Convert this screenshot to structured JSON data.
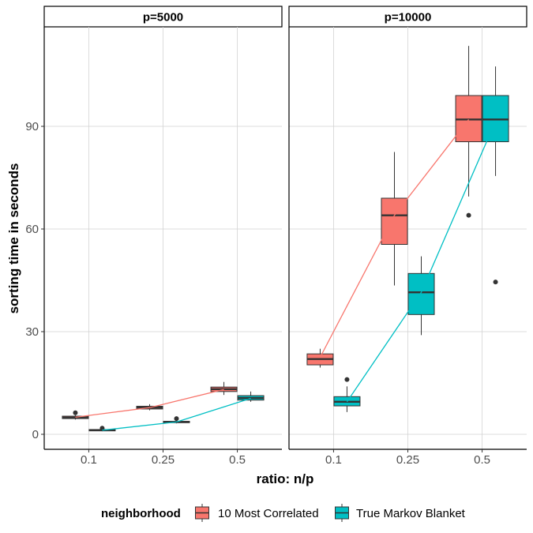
{
  "chart_data": {
    "type": "box",
    "xlabel": "ratio: n/p",
    "ylabel": "sorting time in seconds",
    "categories": [
      "0.1",
      "0.25",
      "0.5"
    ],
    "y_ticks": [
      0,
      30,
      60,
      90
    ],
    "ylim": [
      -4,
      118
    ],
    "grid": true,
    "legend": {
      "title": "neighborhood",
      "position": "bottom",
      "entries": [
        "10 Most Correlated",
        "True Markov Blanket"
      ]
    },
    "colors": {
      "10 Most Correlated": "#F8766D",
      "True Markov Blanket": "#00BFC4",
      "box_line": "#333333",
      "grid": "#d3d3d3"
    },
    "facets": [
      {
        "label": "p=5000",
        "series": [
          {
            "name": "10 Most Correlated",
            "boxes": [
              {
                "category": "0.1",
                "min": 4.3,
                "q1": 4.6,
                "median": 4.9,
                "q3": 5.3,
                "max": 5.6,
                "outliers": [
                  6.3
                ]
              },
              {
                "category": "0.25",
                "min": 7.0,
                "q1": 7.4,
                "median": 7.8,
                "q3": 8.2,
                "max": 8.8,
                "outliers": []
              },
              {
                "category": "0.5",
                "min": 11.5,
                "q1": 12.5,
                "median": 13.2,
                "q3": 13.8,
                "max": 15.3,
                "outliers": []
              }
            ],
            "means": [
              5.0,
              7.8,
              13.1
            ]
          },
          {
            "name": "True Markov Blanket",
            "boxes": [
              {
                "category": "0.1",
                "min": 0.9,
                "q1": 1.0,
                "median": 1.2,
                "q3": 1.4,
                "max": 1.5,
                "outliers": [
                  1.8
                ]
              },
              {
                "category": "0.25",
                "min": 3.2,
                "q1": 3.4,
                "median": 3.6,
                "q3": 3.8,
                "max": 4.0,
                "outliers": [
                  4.6
                ]
              },
              {
                "category": "0.5",
                "min": 9.5,
                "q1": 10.0,
                "median": 10.6,
                "q3": 11.3,
                "max": 12.5,
                "outliers": []
              }
            ],
            "means": [
              1.2,
              3.6,
              10.5
            ]
          }
        ]
      },
      {
        "label": "p=10000",
        "series": [
          {
            "name": "10 Most Correlated",
            "boxes": [
              {
                "category": "0.1",
                "min": 19.5,
                "q1": 20.3,
                "median": 22.0,
                "q3": 23.5,
                "max": 25.0,
                "outliers": []
              },
              {
                "category": "0.25",
                "min": 43.5,
                "q1": 55.5,
                "median": 64.0,
                "q3": 69.0,
                "max": 82.5,
                "outliers": []
              },
              {
                "category": "0.5",
                "min": 69.5,
                "q1": 85.5,
                "median": 92.0,
                "q3": 99.0,
                "max": 113.5,
                "outliers": [
                  64.0
                ]
              }
            ],
            "means": [
              22.5,
              64.0,
              92.0
            ]
          },
          {
            "name": "True Markov Blanket",
            "boxes": [
              {
                "category": "0.1",
                "min": 6.5,
                "q1": 8.3,
                "median": 9.5,
                "q3": 11.0,
                "max": 14.0,
                "outliers": [
                  16.0
                ]
              },
              {
                "category": "0.25",
                "min": 29.0,
                "q1": 35.0,
                "median": 41.5,
                "q3": 47.0,
                "max": 52.0,
                "outliers": []
              },
              {
                "category": "0.5",
                "min": 75.5,
                "q1": 85.5,
                "median": 92.0,
                "q3": 99.0,
                "max": 107.5,
                "outliers": [
                  44.5
                ]
              }
            ],
            "means": [
              9.5,
              41.5,
              91.5
            ]
          }
        ]
      }
    ]
  }
}
